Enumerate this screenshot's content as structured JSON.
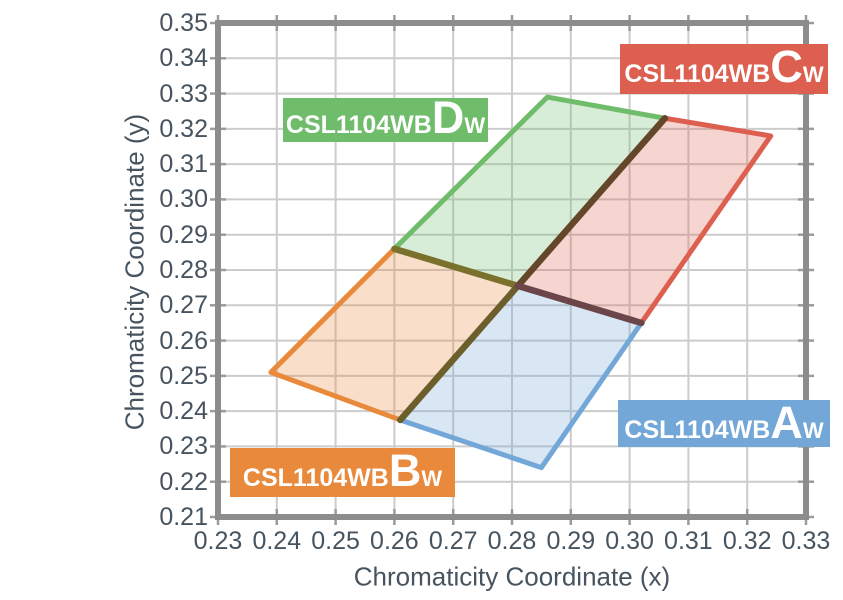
{
  "chart_data": {
    "type": "area",
    "title": "",
    "xlabel": "Chromaticity Coordinate (x)",
    "ylabel": "Chromaticity Coordinate (y)",
    "xlim": [
      0.23,
      0.33
    ],
    "ylim": [
      0.21,
      0.35
    ],
    "grid": true,
    "x_ticks": [
      "0.23",
      "0.24",
      "0.25",
      "0.26",
      "0.27",
      "0.28",
      "0.29",
      "0.30",
      "0.31",
      "0.32",
      "0.33"
    ],
    "y_ticks": [
      "0.35",
      "0.34",
      "0.33",
      "0.32",
      "0.31",
      "0.30",
      "0.29",
      "0.28",
      "0.27",
      "0.26",
      "0.25",
      "0.24",
      "0.23",
      "0.22",
      "0.21"
    ],
    "colors": {
      "grid": "#cccccc",
      "border": "#8c8c8c",
      "tick": "#9b9b9b",
      "axis_text": "#47545f",
      "label_text": "#ffffff"
    },
    "series": [
      {
        "name": "CSL1104WBAW",
        "prefix": "CSL1104WB",
        "letter": "A",
        "sub": "W",
        "color": "#73a7d7",
        "fill_opacity": 0.27,
        "points": [
          [
            0.261,
            0.2375
          ],
          [
            0.281,
            0.2755
          ],
          [
            0.302,
            0.265
          ],
          [
            0.285,
            0.224
          ]
        ]
      },
      {
        "name": "CSL1104WBBW",
        "prefix": "CSL1104WB",
        "letter": "B",
        "sub": "W",
        "color": "#e8893b",
        "fill_opacity": 0.27,
        "points": [
          [
            0.239,
            0.251
          ],
          [
            0.26,
            0.286
          ],
          [
            0.281,
            0.2755
          ],
          [
            0.261,
            0.2375
          ]
        ]
      },
      {
        "name": "CSL1104WBCW",
        "prefix": "CSL1104WB",
        "letter": "C",
        "sub": "W",
        "color": "#dd5f4f",
        "fill_opacity": 0.27,
        "points": [
          [
            0.281,
            0.2755
          ],
          [
            0.306,
            0.323
          ],
          [
            0.324,
            0.318
          ],
          [
            0.302,
            0.265
          ]
        ]
      },
      {
        "name": "CSL1104WBDW",
        "prefix": "CSL1104WB",
        "letter": "D",
        "sub": "W",
        "color": "#6fbc6a",
        "fill_opacity": 0.27,
        "points": [
          [
            0.26,
            0.286
          ],
          [
            0.286,
            0.329
          ],
          [
            0.306,
            0.323
          ],
          [
            0.281,
            0.2755
          ]
        ]
      }
    ],
    "boundary_lines": [
      {
        "from": [
          0.281,
          0.2755
        ],
        "to": [
          0.26,
          0.286
        ],
        "color": "#7a722c"
      },
      {
        "from": [
          0.281,
          0.2755
        ],
        "to": [
          0.261,
          0.2375
        ],
        "color": "#6d5f2b"
      },
      {
        "from": [
          0.281,
          0.2755
        ],
        "to": [
          0.306,
          0.323
        ],
        "color": "#64462a"
      },
      {
        "from": [
          0.281,
          0.2755
        ],
        "to": [
          0.302,
          0.265
        ],
        "color": "#6b4549"
      }
    ]
  }
}
